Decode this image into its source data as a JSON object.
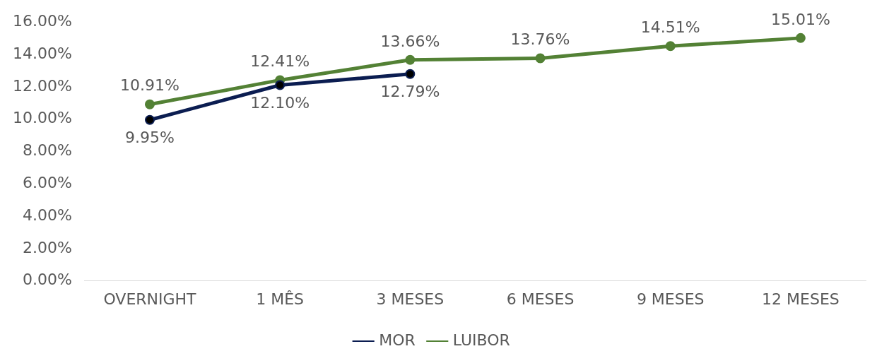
{
  "chart_data": {
    "type": "line",
    "categories": [
      "OVERNIGHT",
      "1 MÊS",
      "3 MESES",
      "6 MESES",
      "9 MESES",
      "12 MESES"
    ],
    "series": [
      {
        "name": "MOR",
        "color": "#0b1d51",
        "values": [
          9.95,
          12.1,
          12.79,
          null,
          null,
          null
        ],
        "value_labels": [
          "9.95%",
          "12.10%",
          "12.79%",
          null,
          null,
          null
        ]
      },
      {
        "name": "LUIBOR",
        "color": "#538135",
        "values": [
          10.91,
          12.41,
          13.66,
          13.76,
          14.51,
          15.01
        ],
        "value_labels": [
          "10.91%",
          "12.41%",
          "13.66%",
          "13.76%",
          "14.51%",
          "15.01%"
        ]
      }
    ],
    "ylim": [
      0,
      16
    ],
    "yticks": [
      {
        "value": 0,
        "label": "0.00%"
      },
      {
        "value": 2,
        "label": "2.00%"
      },
      {
        "value": 4,
        "label": "4.00%"
      },
      {
        "value": 6,
        "label": "6.00%"
      },
      {
        "value": 8,
        "label": "8.00%"
      },
      {
        "value": 10,
        "label": "10.00%"
      },
      {
        "value": 12,
        "label": "12.00%"
      },
      {
        "value": 14,
        "label": "14.00%"
      },
      {
        "value": 16,
        "label": "16.00%"
      }
    ],
    "grid": false,
    "legend": "bottom",
    "marker": "circle",
    "line_style": "solid"
  }
}
